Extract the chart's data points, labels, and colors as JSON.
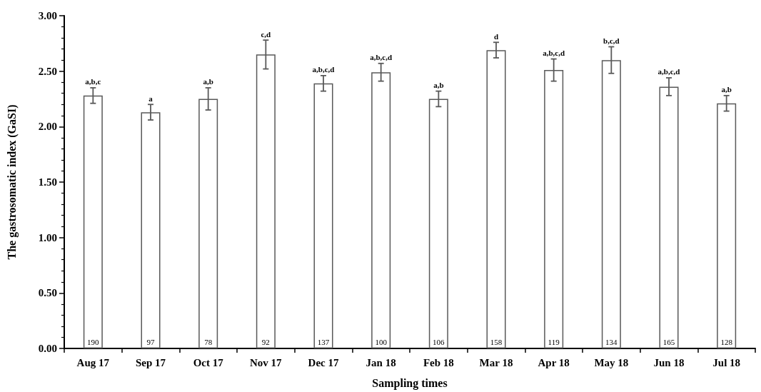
{
  "chart_data": {
    "type": "bar",
    "xlabel": "Sampling times",
    "ylabel": "The gastrosomatic index (GaSI)",
    "categories": [
      "Aug 17",
      "Sep 17",
      "Oct 17",
      "Nov 17",
      "Dec 17",
      "Jan 18",
      "Feb 18",
      "Mar 18",
      "Apr 18",
      "May 18",
      "Jun 18",
      "Jul 18"
    ],
    "values": [
      2.28,
      2.13,
      2.25,
      2.65,
      2.39,
      2.49,
      2.25,
      2.69,
      2.51,
      2.6,
      2.36,
      2.21
    ],
    "errors": [
      0.07,
      0.07,
      0.1,
      0.13,
      0.07,
      0.08,
      0.07,
      0.07,
      0.1,
      0.12,
      0.08,
      0.07
    ],
    "color": "#ffffff",
    "ylim": [
      0,
      3
    ],
    "yticks": [
      {
        "value": 0,
        "label": "0.00"
      },
      {
        "value": 0.1,
        "label": null
      },
      {
        "value": 0.2,
        "label": null
      },
      {
        "value": 0.3,
        "label": null
      },
      {
        "value": 0.4,
        "label": null
      },
      {
        "value": 0.5,
        "label": "0.50"
      },
      {
        "value": 0.6,
        "label": null
      },
      {
        "value": 0.7,
        "label": null
      },
      {
        "value": 0.8,
        "label": null
      },
      {
        "value": 0.9,
        "label": null
      },
      {
        "value": 1,
        "label": "1.00"
      },
      {
        "value": 1.1,
        "label": null
      },
      {
        "value": 1.2,
        "label": null
      },
      {
        "value": 1.3,
        "label": null
      },
      {
        "value": 1.4,
        "label": null
      },
      {
        "value": 1.5,
        "label": "1.50"
      },
      {
        "value": 1.6,
        "label": null
      },
      {
        "value": 1.7,
        "label": null
      },
      {
        "value": 1.8,
        "label": null
      },
      {
        "value": 1.9,
        "label": null
      },
      {
        "value": 2,
        "label": "2.00"
      },
      {
        "value": 2.1,
        "label": null
      },
      {
        "value": 2.2,
        "label": null
      },
      {
        "value": 2.3,
        "label": null
      },
      {
        "value": 2.4,
        "label": null
      },
      {
        "value": 2.5,
        "label": "2.50"
      },
      {
        "value": 2.6,
        "label": null
      },
      {
        "value": 2.7,
        "label": null
      },
      {
        "value": 2.8,
        "label": null
      },
      {
        "value": 2.9,
        "label": null
      },
      {
        "value": 3,
        "label": "3.00"
      }
    ],
    "annotations": [
      {
        "text": "a,b,c",
        "x": "Aug 17",
        "y": 2.35
      },
      {
        "text": "a",
        "x": "Sep 17",
        "y": 2.2
      },
      {
        "text": "a,b",
        "x": "Oct 17",
        "y": 2.35
      },
      {
        "text": "c,d",
        "x": "Nov 17",
        "y": 2.78
      },
      {
        "text": "a,b,c,d",
        "x": "Dec 17",
        "y": 2.46
      },
      {
        "text": "a,b,c,d",
        "x": "Jan 18",
        "y": 2.57
      },
      {
        "text": "a,b",
        "x": "Feb 18",
        "y": 2.32
      },
      {
        "text": "d",
        "x": "Mar 18",
        "y": 2.76
      },
      {
        "text": "a,b,c,d",
        "x": "Apr 18",
        "y": 2.61
      },
      {
        "text": "b,c,d",
        "x": "May 18",
        "y": 2.72
      },
      {
        "text": "a,b,c,d",
        "x": "Jun 18",
        "y": 2.44
      },
      {
        "text": "a,b",
        "x": "Jul 18",
        "y": 2.28
      },
      {
        "text": "190",
        "x": "Aug 17",
        "y": 0
      },
      {
        "text": "97",
        "x": "Sep 17",
        "y": 0
      },
      {
        "text": "78",
        "x": "Oct 17",
        "y": 0
      },
      {
        "text": "92",
        "x": "Nov 17",
        "y": 0
      },
      {
        "text": "137",
        "x": "Dec 17",
        "y": 0
      },
      {
        "text": "100",
        "x": "Jan 18",
        "y": 0
      },
      {
        "text": "106",
        "x": "Feb 18",
        "y": 0
      },
      {
        "text": "158",
        "x": "Mar 18",
        "y": 0
      },
      {
        "text": "119",
        "x": "Apr 18",
        "y": 0
      },
      {
        "text": "134",
        "x": "May 18",
        "y": 0
      },
      {
        "text": "165",
        "x": "Jun 18",
        "y": 0
      },
      {
        "text": "128",
        "x": "Jul 18",
        "y": 0
      }
    ],
    "grid": false
  }
}
